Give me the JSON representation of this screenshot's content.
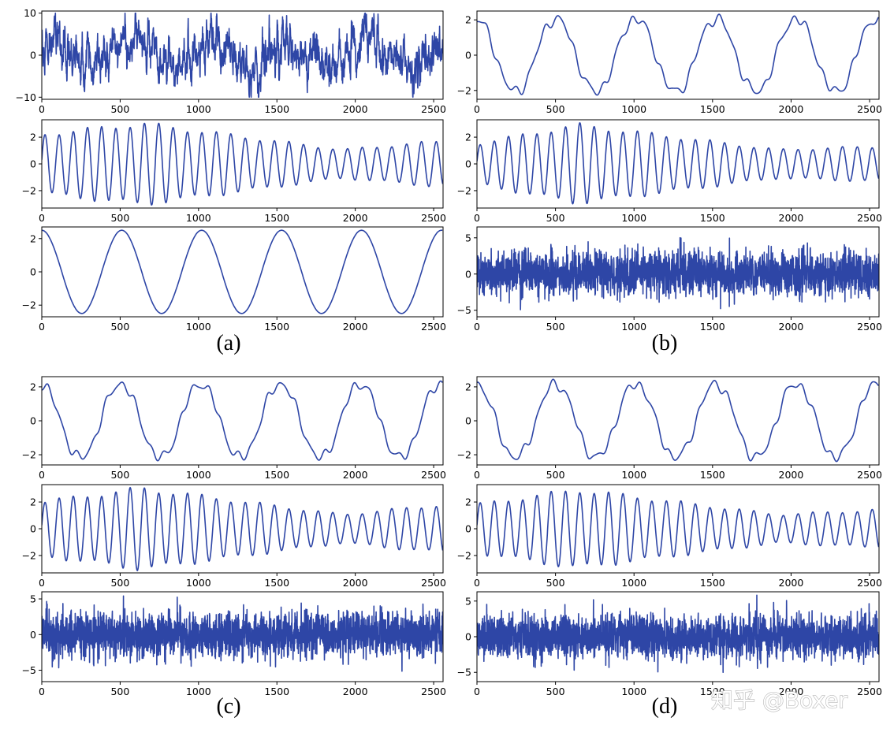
{
  "figure": {
    "line_color": "#2e46a6",
    "watermark": "知乎 @Boxer",
    "panel_labels": [
      "(a)",
      "(b)",
      "(c)",
      "(d)"
    ]
  },
  "chart_data": [
    {
      "panel": "(a)",
      "type": "line",
      "signal": "noisy-trend",
      "xlim": [
        0,
        2560
      ],
      "ylim": [
        -10.5,
        10.5
      ],
      "xticks": [
        "0",
        "500",
        "1000",
        "1500",
        "2000",
        "2500"
      ],
      "yticks": [
        "10",
        "0",
        "−10"
      ],
      "ytick_values": [
        10,
        0,
        -10
      ],
      "series": [
        {
          "amp": 3,
          "period": 510,
          "noise": 3.4
        }
      ]
    },
    {
      "panel": "(a)",
      "type": "line",
      "signal": "chirp",
      "xlim": [
        0,
        2560
      ],
      "ylim": [
        -3.3,
        3.3
      ],
      "xticks": [
        "0",
        "500",
        "1000",
        "1500",
        "2000",
        "2500"
      ],
      "yticks": [
        "2",
        "0",
        "−2"
      ],
      "ytick_values": [
        2,
        0,
        -2
      ],
      "series": [
        {
          "amp_start": 2.2,
          "amp_peak": 3.0,
          "amp_end": 1.7,
          "period_start": 90,
          "period_end": 95
        }
      ]
    },
    {
      "panel": "(a)",
      "type": "line",
      "signal": "sine",
      "xlim": [
        0,
        2560
      ],
      "ylim": [
        -2.7,
        2.7
      ],
      "xticks": [
        "0",
        "500",
        "1000",
        "1500",
        "2000",
        "2500"
      ],
      "yticks": [
        "2",
        "0",
        "−2"
      ],
      "ytick_values": [
        2,
        0,
        -2
      ],
      "series": [
        {
          "amp": 2.5,
          "period": 510,
          "phase": 0
        }
      ]
    },
    {
      "panel": "(b)",
      "type": "line",
      "signal": "wavy-sine",
      "xlim": [
        0,
        2560
      ],
      "ylim": [
        -2.5,
        2.5
      ],
      "xticks": [
        "0",
        "500",
        "1000",
        "1500",
        "2000",
        "2500"
      ],
      "yticks": [
        "2",
        "0",
        "−2"
      ],
      "ytick_values": [
        2,
        0,
        -2
      ],
      "series": [
        {
          "amp": 2.1,
          "period": 510
        }
      ]
    },
    {
      "panel": "(b)",
      "type": "line",
      "signal": "chirp",
      "xlim": [
        0,
        2560
      ],
      "ylim": [
        -3.3,
        3.3
      ],
      "xticks": [
        "0",
        "500",
        "1000",
        "1500",
        "2000",
        "2500"
      ],
      "yticks": [
        "2",
        "0",
        "−2"
      ],
      "ytick_values": [
        2,
        0,
        -2
      ],
      "series": [
        {
          "amp_start": 1.5,
          "amp_peak": 2.9,
          "amp_end": 1.3,
          "period_start": 90,
          "period_end": 95
        }
      ]
    },
    {
      "panel": "(b)",
      "type": "line",
      "signal": "white-noise",
      "xlim": [
        0,
        2560
      ],
      "ylim": [
        -5.9,
        6.5
      ],
      "xticks": [
        "0",
        "500",
        "1000",
        "1500",
        "2000",
        "2500"
      ],
      "yticks": [
        "5",
        "0",
        "−5"
      ],
      "ytick_values": [
        5,
        0,
        -5
      ],
      "series": [
        {
          "std": 1.5
        }
      ]
    },
    {
      "panel": "(c)",
      "type": "line",
      "signal": "wavy-sine",
      "xlim": [
        0,
        2560
      ],
      "ylim": [
        -2.6,
        2.6
      ],
      "xticks": [
        "0",
        "500",
        "1000",
        "1500",
        "2000",
        "2500"
      ],
      "yticks": [
        "2",
        "0",
        "−2"
      ],
      "ytick_values": [
        2,
        0,
        -2
      ],
      "series": [
        {
          "amp": 2.2,
          "period": 510
        }
      ]
    },
    {
      "panel": "(c)",
      "type": "line",
      "signal": "chirp",
      "xlim": [
        0,
        2560
      ],
      "ylim": [
        -3.3,
        3.3
      ],
      "xticks": [
        "0",
        "500",
        "1000",
        "1500",
        "2000",
        "2500"
      ],
      "yticks": [
        "2",
        "0",
        "−2"
      ],
      "ytick_values": [
        2,
        0,
        -2
      ],
      "series": [
        {
          "amp_start": 2.0,
          "amp_peak": 3.0,
          "amp_end": 1.8,
          "period_start": 90,
          "period_end": 95
        }
      ]
    },
    {
      "panel": "(c)",
      "type": "line",
      "signal": "white-noise",
      "xlim": [
        0,
        2560
      ],
      "ylim": [
        -6.6,
        6.0
      ],
      "xticks": [
        "0",
        "500",
        "1000",
        "1500",
        "2000",
        "2500"
      ],
      "yticks": [
        "5",
        "0",
        "−5"
      ],
      "ytick_values": [
        5,
        0,
        -5
      ],
      "series": [
        {
          "std": 1.6
        }
      ]
    },
    {
      "panel": "(d)",
      "type": "line",
      "signal": "wavy-sine",
      "xlim": [
        0,
        2560
      ],
      "ylim": [
        -2.6,
        2.6
      ],
      "xticks": [
        "0",
        "500",
        "1000",
        "1500",
        "2000",
        "2500"
      ],
      "yticks": [
        "2",
        "0",
        "−2"
      ],
      "ytick_values": [
        2,
        0,
        -2
      ],
      "series": [
        {
          "amp": 2.2,
          "period": 510
        }
      ]
    },
    {
      "panel": "(d)",
      "type": "line",
      "signal": "chirp",
      "xlim": [
        0,
        2560
      ],
      "ylim": [
        -3.3,
        3.3
      ],
      "xticks": [
        "0",
        "500",
        "1000",
        "1500",
        "2000",
        "2500"
      ],
      "yticks": [
        "2",
        "0",
        "−2"
      ],
      "ytick_values": [
        2,
        0,
        -2
      ],
      "series": [
        {
          "amp_start": 1.8,
          "amp_peak": 2.9,
          "amp_end": 1.4,
          "period_start": 90,
          "period_end": 95
        }
      ]
    },
    {
      "panel": "(d)",
      "type": "line",
      "signal": "white-noise",
      "xlim": [
        0,
        2560
      ],
      "ylim": [
        -6.3,
        6.3
      ],
      "xticks": [
        "0",
        "500",
        "1000",
        "1500",
        "2000",
        "2500"
      ],
      "yticks": [
        "5",
        "0",
        "−5"
      ],
      "ytick_values": [
        5,
        0,
        -5
      ],
      "series": [
        {
          "std": 1.5
        }
      ]
    }
  ]
}
